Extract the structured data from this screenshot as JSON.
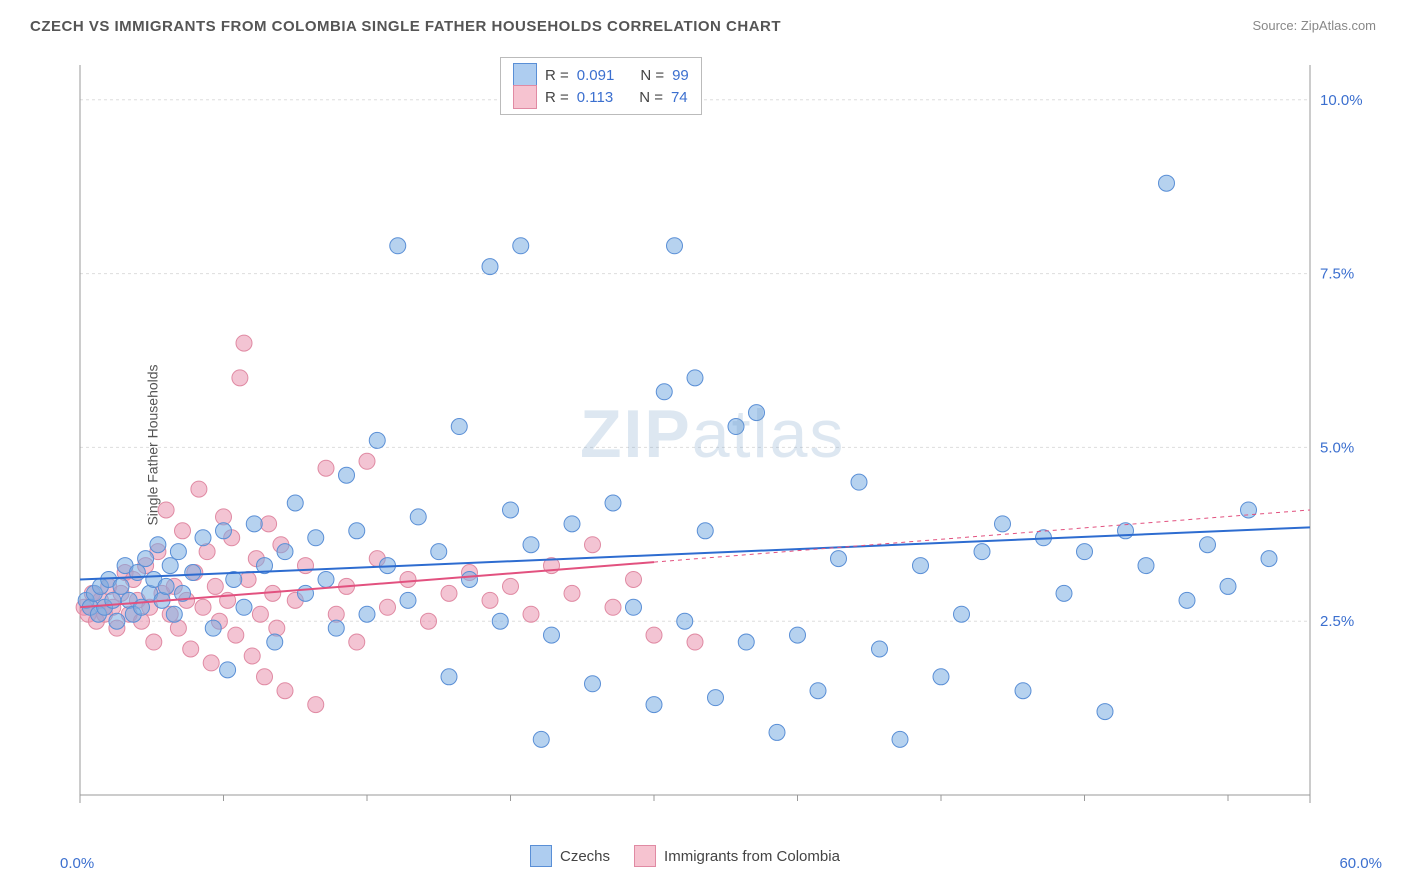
{
  "title": "CZECH VS IMMIGRANTS FROM COLOMBIA SINGLE FATHER HOUSEHOLDS CORRELATION CHART",
  "source": "Source: ZipAtlas.com",
  "ylabel": "Single Father Households",
  "watermark": {
    "zip": "ZIP",
    "atlas": "atlas"
  },
  "chart": {
    "type": "scatter",
    "xlim": [
      0,
      60
    ],
    "ylim": [
      0,
      10.5
    ],
    "xticks": [
      0,
      60
    ],
    "xtick_labels": [
      "0.0%",
      "60.0%"
    ],
    "xtick_minor": [
      7,
      14,
      21,
      28,
      35,
      42,
      49,
      56
    ],
    "yticks": [
      2.5,
      5.0,
      7.5,
      10.0
    ],
    "ytick_labels": [
      "2.5%",
      "5.0%",
      "7.5%",
      "10.0%"
    ],
    "grid_color": "#dddddd",
    "axis_color": "#999999",
    "axis_label_color": "#3b6fcf",
    "background_color": "#ffffff"
  },
  "legend_top": {
    "rows": [
      {
        "swatch_fill": "#aecdf0",
        "swatch_stroke": "#5a8fd6",
        "r_label": "R =",
        "r_val": "0.091",
        "n_label": "N =",
        "n_val": "99"
      },
      {
        "swatch_fill": "#f6c3d0",
        "swatch_stroke": "#e08aa3",
        "r_label": "R =",
        "r_val": "0.113",
        "n_label": "N =",
        "n_val": "74"
      }
    ]
  },
  "legend_bottom": [
    {
      "swatch_fill": "#aecdf0",
      "swatch_stroke": "#5a8fd6",
      "label": "Czechs"
    },
    {
      "swatch_fill": "#f6c3d0",
      "swatch_stroke": "#e08aa3",
      "label": "Immigrants from Colombia"
    }
  ],
  "series": [
    {
      "name": "Czechs",
      "color_fill": "rgba(122,173,226,0.55)",
      "color_stroke": "#5a8fd6",
      "marker_radius": 8,
      "trend": {
        "x1": 0,
        "y1": 3.1,
        "x2": 60,
        "y2": 3.85,
        "color": "#2d6cd0",
        "width": 2
      },
      "points": [
        [
          0.3,
          2.8
        ],
        [
          0.5,
          2.7
        ],
        [
          0.7,
          2.9
        ],
        [
          0.9,
          2.6
        ],
        [
          1.0,
          3.0
        ],
        [
          1.2,
          2.7
        ],
        [
          1.4,
          3.1
        ],
        [
          1.6,
          2.8
        ],
        [
          1.8,
          2.5
        ],
        [
          2.0,
          3.0
        ],
        [
          2.2,
          3.3
        ],
        [
          2.4,
          2.8
        ],
        [
          2.6,
          2.6
        ],
        [
          2.8,
          3.2
        ],
        [
          3.0,
          2.7
        ],
        [
          3.2,
          3.4
        ],
        [
          3.4,
          2.9
        ],
        [
          3.6,
          3.1
        ],
        [
          3.8,
          3.6
        ],
        [
          4.0,
          2.8
        ],
        [
          4.2,
          3.0
        ],
        [
          4.4,
          3.3
        ],
        [
          4.6,
          2.6
        ],
        [
          4.8,
          3.5
        ],
        [
          5.0,
          2.9
        ],
        [
          5.5,
          3.2
        ],
        [
          6.0,
          3.7
        ],
        [
          6.5,
          2.4
        ],
        [
          7.0,
          3.8
        ],
        [
          7.2,
          1.8
        ],
        [
          7.5,
          3.1
        ],
        [
          8.0,
          2.7
        ],
        [
          8.5,
          3.9
        ],
        [
          9.0,
          3.3
        ],
        [
          9.5,
          2.2
        ],
        [
          10.0,
          3.5
        ],
        [
          10.5,
          4.2
        ],
        [
          11.0,
          2.9
        ],
        [
          11.5,
          3.7
        ],
        [
          12.0,
          3.1
        ],
        [
          12.5,
          2.4
        ],
        [
          13.0,
          4.6
        ],
        [
          13.5,
          3.8
        ],
        [
          14.0,
          2.6
        ],
        [
          14.5,
          5.1
        ],
        [
          15.0,
          3.3
        ],
        [
          15.5,
          7.9
        ],
        [
          16.0,
          2.8
        ],
        [
          16.5,
          4.0
        ],
        [
          17.5,
          3.5
        ],
        [
          18.0,
          1.7
        ],
        [
          18.5,
          5.3
        ],
        [
          19.0,
          3.1
        ],
        [
          20.0,
          7.6
        ],
        [
          20.5,
          2.5
        ],
        [
          21.0,
          4.1
        ],
        [
          21.5,
          7.9
        ],
        [
          22.0,
          3.6
        ],
        [
          22.5,
          0.8
        ],
        [
          23.0,
          2.3
        ],
        [
          24.0,
          3.9
        ],
        [
          25.0,
          1.6
        ],
        [
          26.0,
          4.2
        ],
        [
          27.0,
          2.7
        ],
        [
          28.0,
          1.3
        ],
        [
          28.5,
          5.8
        ],
        [
          29.0,
          7.9
        ],
        [
          29.5,
          2.5
        ],
        [
          30.0,
          6.0
        ],
        [
          30.5,
          3.8
        ],
        [
          31.0,
          1.4
        ],
        [
          32.0,
          5.3
        ],
        [
          32.5,
          2.2
        ],
        [
          33.0,
          5.5
        ],
        [
          34.0,
          0.9
        ],
        [
          35.0,
          2.3
        ],
        [
          36.0,
          1.5
        ],
        [
          37.0,
          3.4
        ],
        [
          38.0,
          4.5
        ],
        [
          39.0,
          2.1
        ],
        [
          40.0,
          0.8
        ],
        [
          41.0,
          3.3
        ],
        [
          42.0,
          1.7
        ],
        [
          43.0,
          2.6
        ],
        [
          44.0,
          3.5
        ],
        [
          45.0,
          3.9
        ],
        [
          46.0,
          1.5
        ],
        [
          47.0,
          3.7
        ],
        [
          48.0,
          2.9
        ],
        [
          49.0,
          3.5
        ],
        [
          50.0,
          1.2
        ],
        [
          51.0,
          3.8
        ],
        [
          52.0,
          3.3
        ],
        [
          53.0,
          8.8
        ],
        [
          54.0,
          2.8
        ],
        [
          55.0,
          3.6
        ],
        [
          56.0,
          3.0
        ],
        [
          57.0,
          4.1
        ],
        [
          58.0,
          3.4
        ]
      ]
    },
    {
      "name": "Immigrants from Colombia",
      "color_fill": "rgba(233,148,175,0.55)",
      "color_stroke": "#e08aa3",
      "marker_radius": 8,
      "trend": {
        "x1": 0,
        "y1": 2.7,
        "x2": 28,
        "y2": 3.35,
        "color": "#e2517f",
        "width": 2
      },
      "trend_ext": {
        "x1": 28,
        "y1": 3.35,
        "x2": 60,
        "y2": 4.1,
        "color": "#e2517f",
        "width": 1,
        "dash": "4 4"
      },
      "points": [
        [
          0.2,
          2.7
        ],
        [
          0.4,
          2.6
        ],
        [
          0.6,
          2.9
        ],
        [
          0.8,
          2.5
        ],
        [
          1.0,
          2.8
        ],
        [
          1.2,
          2.6
        ],
        [
          1.4,
          3.0
        ],
        [
          1.6,
          2.7
        ],
        [
          1.8,
          2.4
        ],
        [
          2.0,
          2.9
        ],
        [
          2.2,
          3.2
        ],
        [
          2.4,
          2.6
        ],
        [
          2.6,
          3.1
        ],
        [
          2.8,
          2.8
        ],
        [
          3.0,
          2.5
        ],
        [
          3.2,
          3.3
        ],
        [
          3.4,
          2.7
        ],
        [
          3.6,
          2.2
        ],
        [
          3.8,
          3.5
        ],
        [
          4.0,
          2.9
        ],
        [
          4.2,
          4.1
        ],
        [
          4.4,
          2.6
        ],
        [
          4.6,
          3.0
        ],
        [
          4.8,
          2.4
        ],
        [
          5.0,
          3.8
        ],
        [
          5.2,
          2.8
        ],
        [
          5.4,
          2.1
        ],
        [
          5.6,
          3.2
        ],
        [
          5.8,
          4.4
        ],
        [
          6.0,
          2.7
        ],
        [
          6.2,
          3.5
        ],
        [
          6.4,
          1.9
        ],
        [
          6.6,
          3.0
        ],
        [
          6.8,
          2.5
        ],
        [
          7.0,
          4.0
        ],
        [
          7.2,
          2.8
        ],
        [
          7.4,
          3.7
        ],
        [
          7.6,
          2.3
        ],
        [
          7.8,
          6.0
        ],
        [
          8.0,
          6.5
        ],
        [
          8.2,
          3.1
        ],
        [
          8.4,
          2.0
        ],
        [
          8.6,
          3.4
        ],
        [
          8.8,
          2.6
        ],
        [
          9.0,
          1.7
        ],
        [
          9.2,
          3.9
        ],
        [
          9.4,
          2.9
        ],
        [
          9.6,
          2.4
        ],
        [
          9.8,
          3.6
        ],
        [
          10.0,
          1.5
        ],
        [
          10.5,
          2.8
        ],
        [
          11.0,
          3.3
        ],
        [
          11.5,
          1.3
        ],
        [
          12.0,
          4.7
        ],
        [
          12.5,
          2.6
        ],
        [
          13.0,
          3.0
        ],
        [
          13.5,
          2.2
        ],
        [
          14.0,
          4.8
        ],
        [
          14.5,
          3.4
        ],
        [
          15.0,
          2.7
        ],
        [
          16.0,
          3.1
        ],
        [
          17.0,
          2.5
        ],
        [
          18.0,
          2.9
        ],
        [
          19.0,
          3.2
        ],
        [
          20.0,
          2.8
        ],
        [
          21.0,
          3.0
        ],
        [
          22.0,
          2.6
        ],
        [
          23.0,
          3.3
        ],
        [
          24.0,
          2.9
        ],
        [
          25.0,
          3.6
        ],
        [
          26.0,
          2.7
        ],
        [
          27.0,
          3.1
        ],
        [
          28.0,
          2.3
        ],
        [
          30.0,
          2.2
        ]
      ]
    }
  ]
}
